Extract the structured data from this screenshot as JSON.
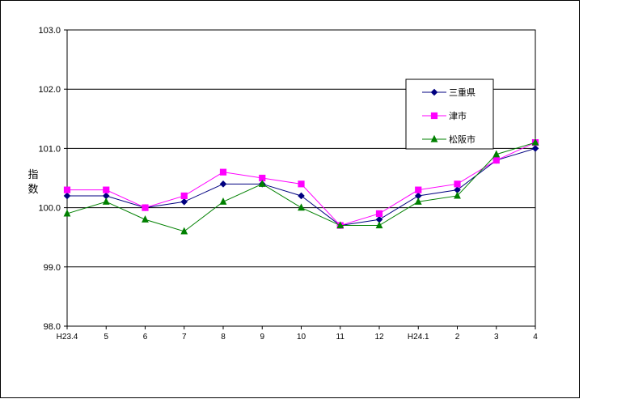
{
  "chart_data": {
    "type": "line",
    "categories": [
      "H23.4",
      "5",
      "6",
      "7",
      "8",
      "9",
      "10",
      "11",
      "12",
      "H24.1",
      "2",
      "3",
      "4"
    ],
    "ylabel": "指数",
    "ylim": [
      98.0,
      103.0
    ],
    "yticks": [
      "103.0",
      "102.0",
      "101.0",
      "100.0",
      "99.0",
      "98.0"
    ],
    "grid": true,
    "legend_position": "right",
    "series": [
      {
        "name": "三重県",
        "color": "#000080",
        "marker": "diamond",
        "values": [
          100.2,
          100.2,
          100.0,
          100.1,
          100.4,
          100.4,
          100.2,
          99.7,
          99.8,
          100.2,
          100.3,
          100.8,
          101.0
        ]
      },
      {
        "name": "津市",
        "color": "#ff00ff",
        "marker": "square",
        "values": [
          100.3,
          100.3,
          100.0,
          100.2,
          100.6,
          100.5,
          100.4,
          99.7,
          99.9,
          100.3,
          100.4,
          100.8,
          101.1
        ]
      },
      {
        "name": "松阪市",
        "color": "#008000",
        "marker": "triangle",
        "values": [
          99.9,
          100.1,
          99.8,
          99.6,
          100.1,
          100.4,
          100.0,
          99.7,
          99.7,
          100.1,
          100.2,
          100.9,
          101.1
        ]
      }
    ]
  }
}
